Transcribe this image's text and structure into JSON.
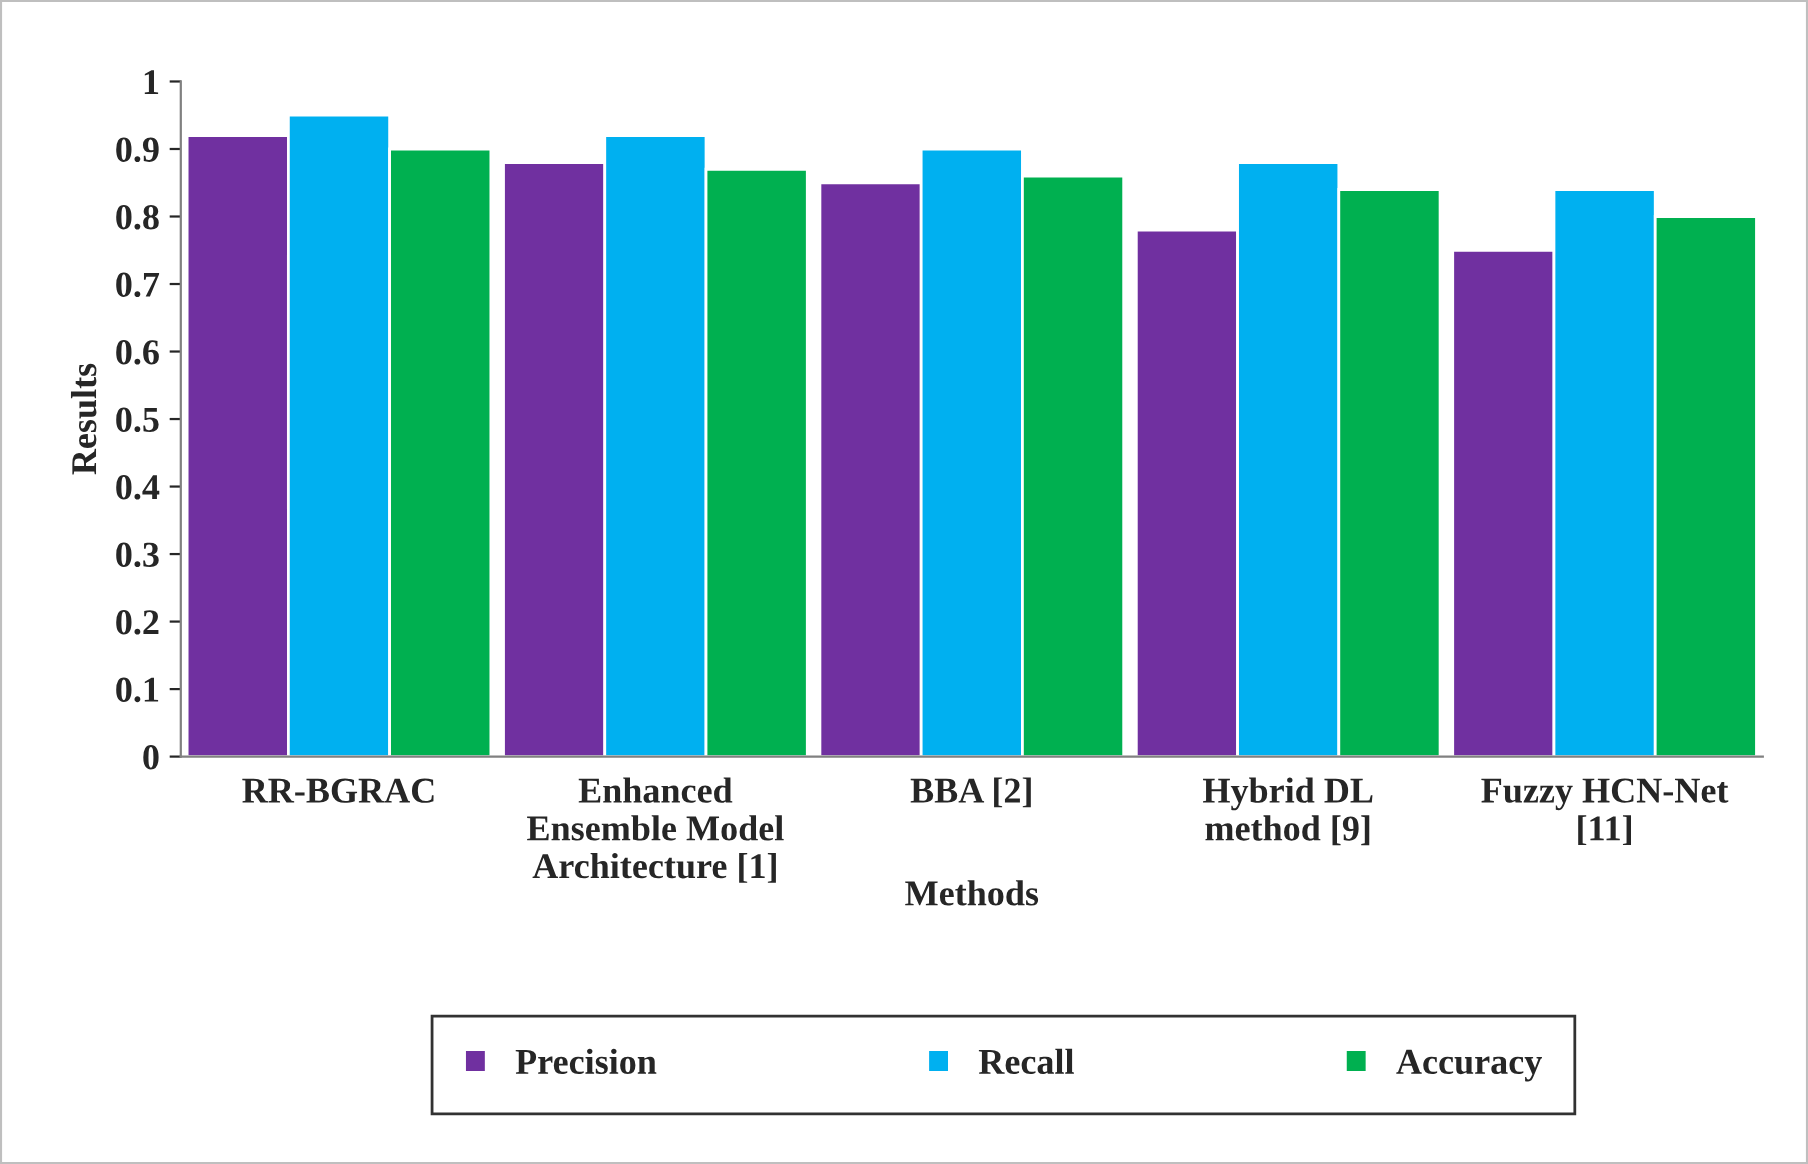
{
  "chart_data": {
    "type": "bar",
    "xlabel": "Methods",
    "ylabel": "Results",
    "categories": [
      "RR-BGRAC",
      "Enhanced\nEnsemble Model\nArchitecture [1]",
      "BBA [2]",
      "Hybrid DL\nmethod [9]",
      "Fuzzy HCN-Net\n[11]"
    ],
    "series": [
      {
        "name": "Precision",
        "color": "#7030a0",
        "values": [
          0.92,
          0.88,
          0.85,
          0.78,
          0.75
        ]
      },
      {
        "name": "Recall",
        "color": "#00b0f0",
        "values": [
          0.95,
          0.92,
          0.9,
          0.88,
          0.84
        ]
      },
      {
        "name": "Accuracy",
        "color": "#00b050",
        "values": [
          0.9,
          0.87,
          0.86,
          0.84,
          0.8
        ]
      }
    ],
    "ylim": [
      0,
      1
    ],
    "yticks": [
      0,
      0.1,
      0.2,
      0.3,
      0.4,
      0.5,
      0.6,
      0.7,
      0.8,
      0.9,
      1
    ],
    "grid": false,
    "legend": "bottom"
  }
}
